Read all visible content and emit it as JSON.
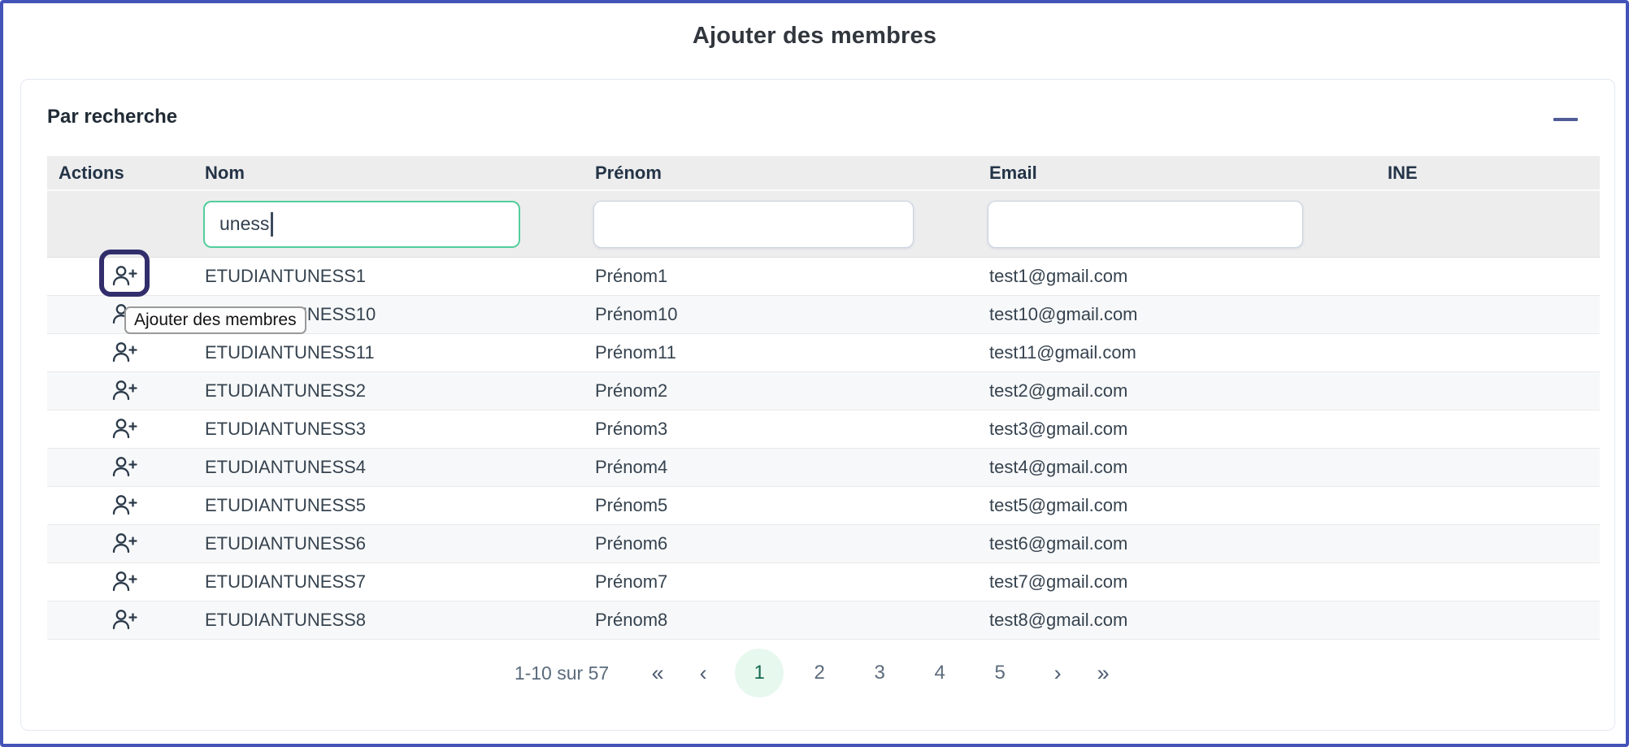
{
  "page": {
    "title": "Ajouter des membres"
  },
  "section": {
    "title": "Par recherche"
  },
  "table": {
    "columns": [
      "Actions",
      "Nom",
      "Prénom",
      "Email",
      "INE"
    ],
    "filters": {
      "nom_value": "uness",
      "prenom_value": "",
      "email_value": ""
    },
    "rows": [
      {
        "nom": "ETUDIANTUNESS1",
        "prenom": "Prénom1",
        "email": "test1@gmail.com",
        "ine": ""
      },
      {
        "nom": "ETUDIANTUNESS10",
        "prenom": "Prénom10",
        "email": "test10@gmail.com",
        "ine": ""
      },
      {
        "nom": "ETUDIANTUNESS11",
        "prenom": "Prénom11",
        "email": "test11@gmail.com",
        "ine": ""
      },
      {
        "nom": "ETUDIANTUNESS2",
        "prenom": "Prénom2",
        "email": "test2@gmail.com",
        "ine": ""
      },
      {
        "nom": "ETUDIANTUNESS3",
        "prenom": "Prénom3",
        "email": "test3@gmail.com",
        "ine": ""
      },
      {
        "nom": "ETUDIANTUNESS4",
        "prenom": "Prénom4",
        "email": "test4@gmail.com",
        "ine": ""
      },
      {
        "nom": "ETUDIANTUNESS5",
        "prenom": "Prénom5",
        "email": "test5@gmail.com",
        "ine": ""
      },
      {
        "nom": "ETUDIANTUNESS6",
        "prenom": "Prénom6",
        "email": "test6@gmail.com",
        "ine": ""
      },
      {
        "nom": "ETUDIANTUNESS7",
        "prenom": "Prénom7",
        "email": "test7@gmail.com",
        "ine": ""
      },
      {
        "nom": "ETUDIANTUNESS8",
        "prenom": "Prénom8",
        "email": "test8@gmail.com",
        "ine": ""
      }
    ]
  },
  "tooltip": {
    "text": "Ajouter des membres"
  },
  "pagination": {
    "range_label": "1-10 sur 57",
    "first_icon": "«",
    "prev_icon": "‹",
    "next_icon": "›",
    "last_icon": "»",
    "pages": [
      1,
      2,
      3,
      4,
      5
    ],
    "active_page": 1
  },
  "colors": {
    "frame_border": "#4353B8",
    "focus_green": "#52CE9B",
    "selection_box": "#322E6C",
    "active_page_bg": "#E7F8EE",
    "active_page_text": "#156B52"
  }
}
